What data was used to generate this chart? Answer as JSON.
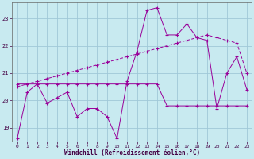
{
  "xlabel": "Windchill (Refroidissement éolien,°C)",
  "background_color": "#c8eaf0",
  "grid_color": "#a0c8d8",
  "line_color": "#990099",
  "x_hours": [
    0,
    1,
    2,
    3,
    4,
    5,
    6,
    7,
    8,
    9,
    10,
    11,
    12,
    13,
    14,
    15,
    16,
    17,
    18,
    19,
    20,
    21,
    22,
    23
  ],
  "series1": [
    18.6,
    20.3,
    20.6,
    19.9,
    20.1,
    20.3,
    19.4,
    19.7,
    19.7,
    19.4,
    18.6,
    20.7,
    21.8,
    23.3,
    23.4,
    22.4,
    22.4,
    22.8,
    22.3,
    22.2,
    19.7,
    21.0,
    21.6,
    20.4
  ],
  "series2": [
    20.6,
    20.6,
    20.6,
    20.6,
    20.6,
    20.6,
    20.6,
    20.6,
    20.6,
    20.6,
    20.6,
    20.6,
    20.6,
    20.6,
    20.6,
    19.8,
    19.8,
    19.8,
    19.8,
    19.8,
    19.8,
    19.8,
    19.8,
    19.8
  ],
  "series3": [
    20.5,
    20.6,
    20.7,
    20.8,
    20.9,
    21.0,
    21.1,
    21.2,
    21.3,
    21.4,
    21.5,
    21.6,
    21.7,
    21.8,
    21.9,
    22.0,
    22.1,
    22.2,
    22.3,
    22.4,
    22.3,
    22.2,
    22.1,
    21.0
  ],
  "ylim": [
    18.5,
    23.6
  ],
  "yticks": [
    19,
    20,
    21,
    22,
    23
  ],
  "xlim": [
    -0.5,
    23.5
  ],
  "xticks": [
    0,
    1,
    2,
    3,
    4,
    5,
    6,
    7,
    8,
    9,
    10,
    11,
    12,
    13,
    14,
    15,
    16,
    17,
    18,
    19,
    20,
    21,
    22,
    23
  ]
}
